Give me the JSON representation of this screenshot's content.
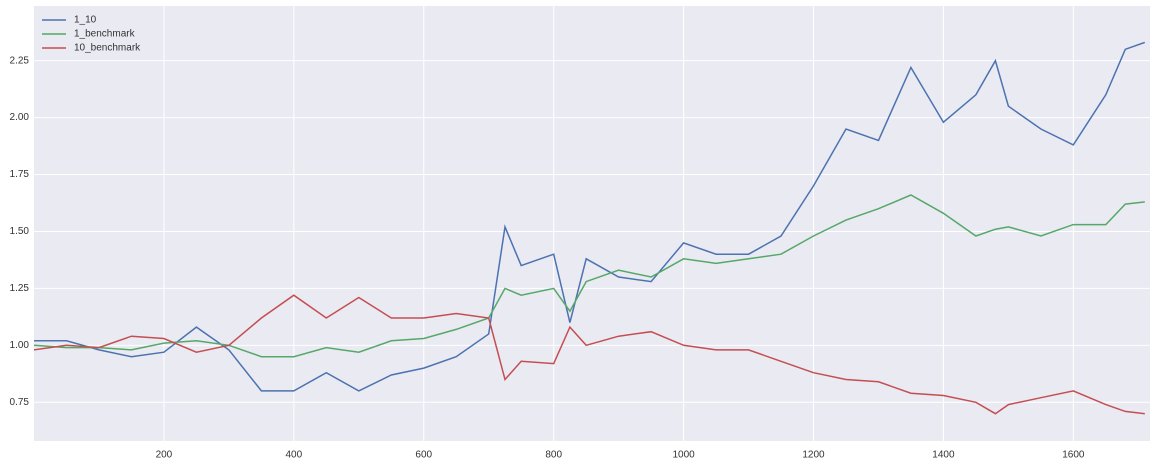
{
  "chart_data": {
    "type": "line",
    "x": [
      0,
      50,
      100,
      150,
      200,
      250,
      300,
      350,
      400,
      450,
      500,
      550,
      600,
      650,
      700,
      725,
      750,
      800,
      825,
      850,
      900,
      950,
      1000,
      1050,
      1100,
      1150,
      1200,
      1250,
      1300,
      1350,
      1400,
      1450,
      1480,
      1500,
      1550,
      1600,
      1650,
      1680,
      1710
    ],
    "series": [
      {
        "name": "1_10",
        "color": "#4c72b0",
        "values": [
          1.02,
          1.02,
          0.98,
          0.95,
          0.97,
          1.08,
          0.98,
          0.8,
          0.8,
          0.88,
          0.8,
          0.87,
          0.9,
          0.95,
          1.05,
          1.52,
          1.35,
          1.4,
          1.1,
          1.38,
          1.3,
          1.28,
          1.45,
          1.4,
          1.4,
          1.48,
          1.7,
          1.95,
          1.9,
          2.22,
          1.98,
          2.1,
          2.25,
          2.05,
          1.95,
          1.88,
          2.1,
          2.3,
          2.33
        ]
      },
      {
        "name": "1_benchmark",
        "color": "#55a868",
        "values": [
          1.0,
          0.99,
          0.99,
          0.98,
          1.01,
          1.02,
          1.0,
          0.95,
          0.95,
          0.99,
          0.97,
          1.02,
          1.03,
          1.07,
          1.12,
          1.25,
          1.22,
          1.25,
          1.15,
          1.28,
          1.33,
          1.3,
          1.38,
          1.36,
          1.38,
          1.4,
          1.48,
          1.55,
          1.6,
          1.66,
          1.58,
          1.48,
          1.51,
          1.52,
          1.48,
          1.53,
          1.53,
          1.62,
          1.63
        ]
      },
      {
        "name": "10_benchmark",
        "color": "#c44e52",
        "values": [
          0.98,
          1.0,
          0.99,
          1.04,
          1.03,
          0.97,
          1.0,
          1.12,
          1.22,
          1.12,
          1.21,
          1.12,
          1.12,
          1.14,
          1.12,
          0.85,
          0.93,
          0.92,
          1.08,
          1.0,
          1.04,
          1.06,
          1.0,
          0.98,
          0.98,
          0.93,
          0.88,
          0.85,
          0.84,
          0.79,
          0.78,
          0.75,
          0.7,
          0.74,
          0.77,
          0.8,
          0.74,
          0.71,
          0.7
        ]
      }
    ],
    "xlim": [
      0,
      1718
    ],
    "ylim": [
      0.58,
      2.49
    ],
    "xticks": [
      200,
      400,
      600,
      800,
      1000,
      1200,
      1400,
      1600
    ],
    "yticks": [
      0.75,
      {
        "value": 1.0,
        "label": "1.00"
      },
      1.25,
      {
        "value": 1.5,
        "label": "1.50"
      },
      1.75,
      {
        "value": 2.0,
        "label": "2.00"
      },
      2.25
    ],
    "grid": true,
    "legend": "upper-left"
  }
}
